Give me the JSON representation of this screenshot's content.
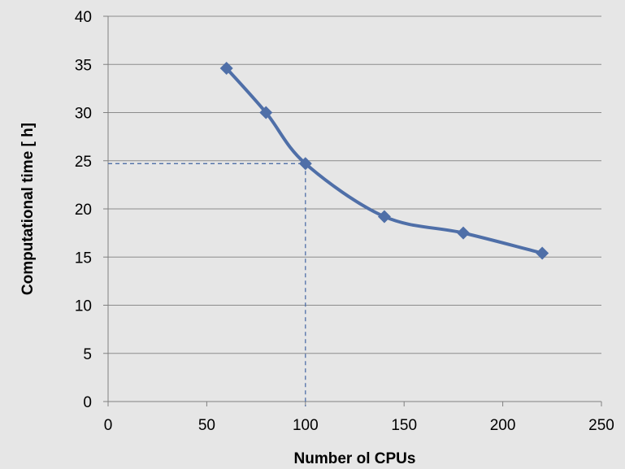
{
  "chart_data": {
    "type": "line",
    "title": "",
    "xlabel": "Number ol CPUs",
    "ylabel": "Computational  time [ h]",
    "xlim": [
      0,
      250
    ],
    "ylim": [
      0,
      40
    ],
    "x_ticks": [
      0,
      50,
      100,
      150,
      200,
      250
    ],
    "y_ticks": [
      0,
      5,
      10,
      15,
      20,
      25,
      30,
      35,
      40
    ],
    "grid": "horizontal",
    "legend": "none",
    "series": [
      {
        "color": "#4f6fa8",
        "marker": "diamond",
        "smooth": true,
        "x": [
          60,
          80,
          100,
          140,
          180,
          220
        ],
        "y": [
          34.6,
          30.0,
          24.7,
          19.2,
          17.5,
          15.4
        ]
      }
    ],
    "annotations": [
      {
        "type": "dashed-guide",
        "x": 100,
        "y": 24.7,
        "color": "#4f6fa8"
      }
    ]
  }
}
